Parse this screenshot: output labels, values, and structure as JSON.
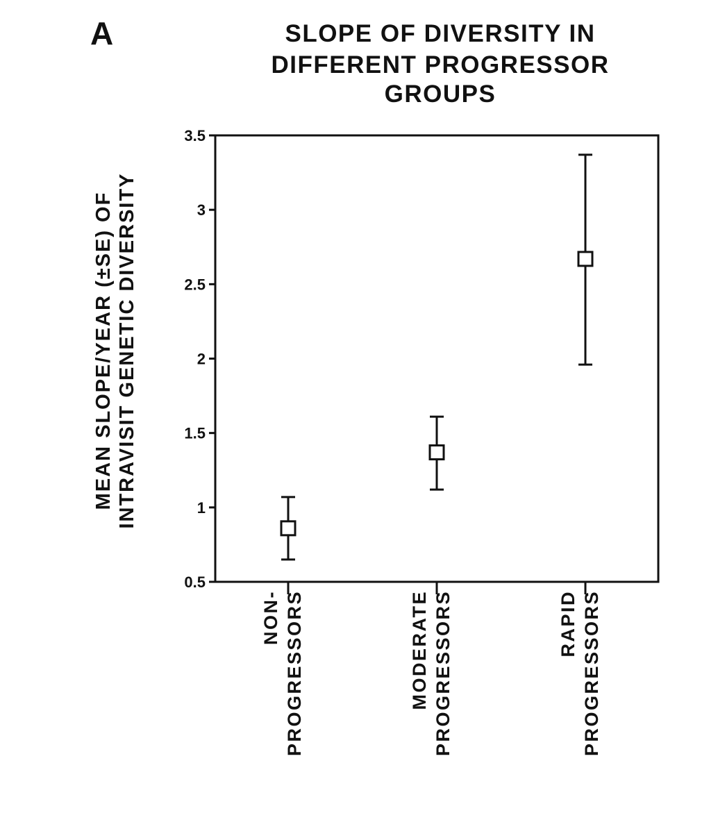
{
  "panel_letter": "A",
  "chart_data": {
    "type": "scatter",
    "title_lines": [
      "SLOPE OF DIVERSITY IN",
      "DIFFERENT PROGRESSOR",
      "GROUPS"
    ],
    "ylabel_lines": [
      "MEAN SLOPE/YEAR (±SE) OF",
      "INTRAVISIT GENETIC DIVERSITY"
    ],
    "xlabel": "",
    "ylim": [
      0.5,
      3.5
    ],
    "yticks": [
      0.5,
      1,
      1.5,
      2,
      2.5,
      3,
      3.5
    ],
    "ytick_labels": [
      "0.5",
      "1",
      "1.5",
      "2",
      "2.5",
      "3",
      "3.5"
    ],
    "categories": [
      [
        "NON-",
        "PROGRESSORS"
      ],
      [
        "MODERATE",
        "PROGRESSORS"
      ],
      [
        "RAPID",
        "PROGRESSORS"
      ]
    ],
    "values": [
      0.86,
      1.37,
      2.67
    ],
    "error_low": [
      0.65,
      1.12,
      1.96
    ],
    "error_high": [
      1.07,
      1.61,
      3.37
    ],
    "marker": "open-square",
    "grid": false,
    "legend": "none"
  },
  "colors": {
    "ink": "#111111",
    "background": "#ffffff"
  }
}
